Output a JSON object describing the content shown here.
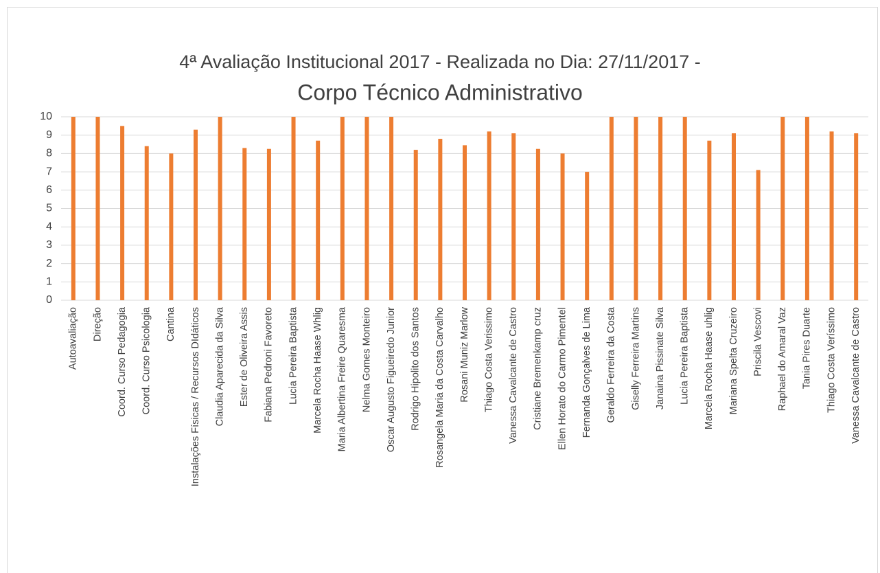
{
  "chart_data": {
    "type": "bar",
    "title": "4ª Avaliação Institucional 2017 - Realizada no Dia: 27/11/2017 -",
    "subtitle": "Corpo Técnico Administrativo",
    "categories": [
      "Autoavaliação",
      "Direção",
      "Coord. Curso Pedagogia",
      "Coord. Curso Psicologia",
      "Cantina",
      "Instalações Físicas / Recursos DIdáticos",
      "Claudia Aparecida da Silva",
      "Ester de Oliveira Assis",
      "Fabiana Pedroni Favoreto",
      "Lucia Pereira Baptista",
      "Marcela Rocha Haase Whlig",
      "Maria Albertina Freire Quaresma",
      "Nelma Gomes Monteiro",
      "Oscar Augusto Figueiredo Junior",
      "Rodrigo Hipolito dos Santos",
      "Rosangela Maria da Costa Carvalho",
      "Rosani Muniz Marlow",
      "Thiago Costa Verissimo",
      "Vanessa Cavalcante de Castro",
      "Cristiane Bremenkamp cruz",
      "Ellen Horato do Carmo Pimentel",
      "Fernanda Gonçalves de Lima",
      "Geraldo Ferreira da Costa",
      "Giselly Ferreira Martins",
      "Janaina Pissinate Silva",
      "Lucia Pereira Baptista",
      "Marcela Rocha Haase uhlig",
      "Mariana Spelta Cruzeiro",
      "Priscila Vescovi",
      "Raphael do Amaral Vaz",
      "Tania Pires Duarte",
      "Thiago Costa Veríssimo",
      "Vanessa Cavalcante de Castro"
    ],
    "values": [
      10,
      10,
      9.5,
      8.4,
      8,
      9.3,
      10,
      8.3,
      8.25,
      10,
      8.7,
      10,
      10,
      10,
      8.2,
      8.8,
      8.45,
      9.2,
      9.1,
      8.25,
      8,
      7,
      10,
      10,
      10,
      10,
      8.7,
      9.1,
      7.1,
      10,
      10,
      9.2,
      9.1
    ],
    "color": "#ed7d31",
    "ylim": [
      0,
      10
    ],
    "yticks": [
      0,
      1,
      2,
      3,
      4,
      5,
      6,
      7,
      8,
      9,
      10
    ],
    "grid": true
  }
}
